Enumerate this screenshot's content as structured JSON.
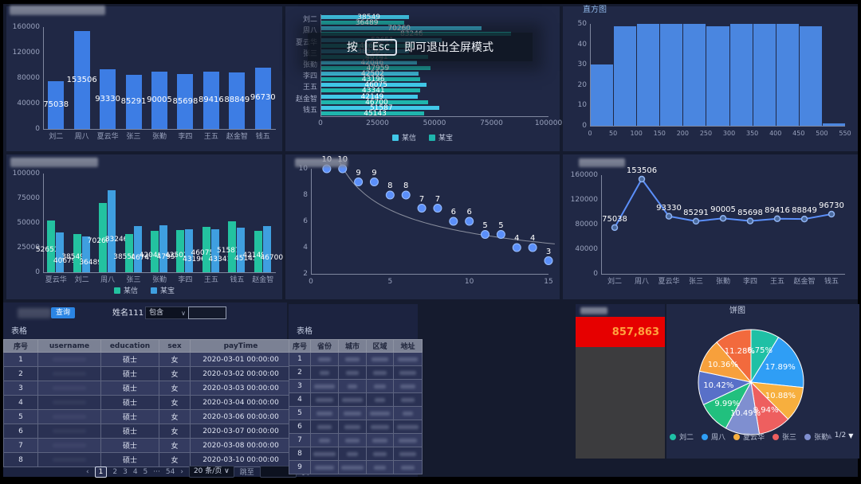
{
  "esc_overlay": {
    "prefix": "按",
    "key": "Esc",
    "suffix": "即可退出全屏模式"
  },
  "stat": {
    "value": "857,863"
  },
  "query_bar": {
    "button": "查询",
    "name_label": "姓名111",
    "operator": "包含",
    "input_value": ""
  },
  "table1": {
    "title": "表格",
    "headers": [
      "序号",
      "username",
      "education",
      "sex",
      "payTime"
    ],
    "rows": [
      [
        "1",
        "",
        "硕士",
        "女",
        "2020-03-01 00:00:00"
      ],
      [
        "2",
        "",
        "硕士",
        "女",
        "2020-03-02 00:00:00"
      ],
      [
        "3",
        "",
        "硕士",
        "女",
        "2020-03-03 00:00:00"
      ],
      [
        "4",
        "",
        "硕士",
        "女",
        "2020-03-04 00:00:00"
      ],
      [
        "5",
        "",
        "硕士",
        "女",
        "2020-03-06 00:00:00"
      ],
      [
        "6",
        "",
        "硕士",
        "女",
        "2020-03-07 00:00:00"
      ],
      [
        "7",
        "",
        "硕士",
        "女",
        "2020-03-08 00:00:00"
      ],
      [
        "8",
        "",
        "硕士",
        "女",
        "2020-03-10 00:00:00"
      ]
    ],
    "pagination": {
      "prev": "‹",
      "next": "›",
      "pages": [
        "1",
        "2",
        "3",
        "4",
        "5",
        "···",
        "54"
      ],
      "current": "1",
      "page_size": "20 条/页",
      "chevron": "∨",
      "jump_prefix": "跳至",
      "jump_suffix": "页"
    }
  },
  "table2": {
    "title": "表格",
    "headers": [
      "序号",
      "省份",
      "城市",
      "区域",
      "地址"
    ],
    "row_indexes": [
      "1",
      "2",
      "3",
      "4",
      "5",
      "6",
      "7",
      "8",
      "9"
    ]
  },
  "chart_data": [
    {
      "id": "bar_total",
      "type": "bar",
      "categories": [
        "刘二",
        "周八",
        "夏云华",
        "张三",
        "张勤",
        "李四",
        "王五",
        "赵金智",
        "钱五"
      ],
      "values": [
        75038,
        153506,
        93330,
        85291,
        90005,
        85698,
        89416,
        88849,
        96730
      ],
      "ylim": [
        0,
        160000
      ],
      "yticks": [
        0,
        40000,
        80000,
        120000,
        160000
      ],
      "color": "#3d7de4",
      "title": ""
    },
    {
      "id": "hbar_pair",
      "type": "bar-horizontal",
      "categories": [
        "刘二",
        "周八",
        "夏云华",
        "张三",
        "张勤",
        "李四",
        "王五",
        "赵金智",
        "钱五"
      ],
      "series": [
        {
          "name": "某信",
          "color": "#41c8e8",
          "values": [
            38549,
            70260,
            52651,
            38550,
            42046,
            42502,
            46075,
            42149,
            51587
          ]
        },
        {
          "name": "某宝",
          "color": "#1fb5ad",
          "values": [
            36489,
            83246,
            40679,
            46741,
            47959,
            43196,
            43341,
            46700,
            45143
          ]
        }
      ],
      "xlim": [
        0,
        100000
      ],
      "xticks": [
        0,
        25000,
        50000,
        75000,
        100000
      ],
      "legend_position": "bottom",
      "title": ""
    },
    {
      "id": "histogram",
      "type": "bar",
      "title": "直方图",
      "bin_edges": [
        0,
        50,
        100,
        150,
        200,
        250,
        300,
        350,
        400,
        450,
        500,
        550
      ],
      "values": [
        30,
        49,
        50,
        50,
        50,
        49,
        50,
        50,
        50,
        49,
        1
      ],
      "ylim": [
        0,
        50
      ],
      "yticks": [
        0,
        10,
        20,
        30,
        40,
        50
      ],
      "color": "#4a86e0"
    },
    {
      "id": "bar_pair",
      "type": "bar",
      "categories": [
        "夏云华",
        "刘二",
        "周八",
        "张三",
        "张勤",
        "李四",
        "王五",
        "钱五",
        "赵金智"
      ],
      "series": [
        {
          "name": "某信",
          "color": "#23c2a0",
          "values": [
            52651,
            38549,
            70260,
            38550,
            42046,
            42502,
            46075,
            51587,
            42149
          ]
        },
        {
          "name": "某宝",
          "color": "#3f9fe0",
          "values": [
            40679,
            36489,
            83246,
            46741,
            47959,
            43196,
            43341,
            45143,
            46700
          ]
        }
      ],
      "ylim": [
        0,
        100000
      ],
      "yticks": [
        0,
        25000,
        50000,
        75000,
        100000
      ],
      "legend_position": "bottom",
      "title": ""
    },
    {
      "id": "scatter",
      "type": "scatter",
      "x": [
        1,
        2,
        3,
        4,
        5,
        6,
        7,
        8,
        9,
        10,
        11,
        12,
        13,
        14,
        15
      ],
      "y": [
        10,
        10,
        9,
        9,
        8,
        8,
        7,
        7,
        6,
        6,
        5,
        5,
        4,
        4,
        3
      ],
      "xlim": [
        0,
        15
      ],
      "xticks": [
        0,
        5,
        10,
        15
      ],
      "ylim": [
        2,
        10
      ],
      "yticks": [
        2,
        4,
        6,
        8,
        10
      ],
      "point_color": "#5b8ff9",
      "trend": {
        "a": 13.5,
        "b": -0.42,
        "color": "#8a8f9e"
      },
      "title": ""
    },
    {
      "id": "line_total",
      "type": "line",
      "categories": [
        "刘二",
        "周八",
        "夏云华",
        "张三",
        "张勤",
        "李四",
        "王五",
        "赵金智",
        "钱五"
      ],
      "values": [
        75038,
        153506,
        93330,
        85291,
        90005,
        85698,
        89416,
        88849,
        96730
      ],
      "ylim": [
        0,
        160000
      ],
      "yticks": [
        0,
        40000,
        80000,
        120000,
        160000
      ],
      "color": "#5b8ff9",
      "title": ""
    },
    {
      "id": "pie",
      "type": "pie",
      "title": "饼图",
      "slices": [
        {
          "name": "刘二",
          "pct": 8.75,
          "color": "#1fc0a5"
        },
        {
          "name": "周八",
          "pct": 17.89,
          "color": "#2f9ef5"
        },
        {
          "name": "夏云华",
          "pct": 10.88,
          "color": "#f7af3e"
        },
        {
          "name": "张三",
          "pct": 9.94,
          "color": "#ee5f5f"
        },
        {
          "name": "张勤",
          "pct": 10.49,
          "color": "#7f8fd0"
        },
        {
          "name": "李四",
          "pct": 9.99,
          "color": "#21c07e"
        },
        {
          "name": "王五",
          "pct": 10.42,
          "color": "#5870c8"
        },
        {
          "name": "赵金智",
          "pct": 10.36,
          "color": "#f7a03c"
        },
        {
          "name": "钱五",
          "pct": 11.28,
          "color": "#f26a3d"
        }
      ],
      "legend_visible": [
        "刘二",
        "周八",
        "夏云华",
        "张三",
        "张勤"
      ],
      "legend_page": "1/2",
      "legend_up": "▲",
      "legend_down": "▼"
    }
  ]
}
